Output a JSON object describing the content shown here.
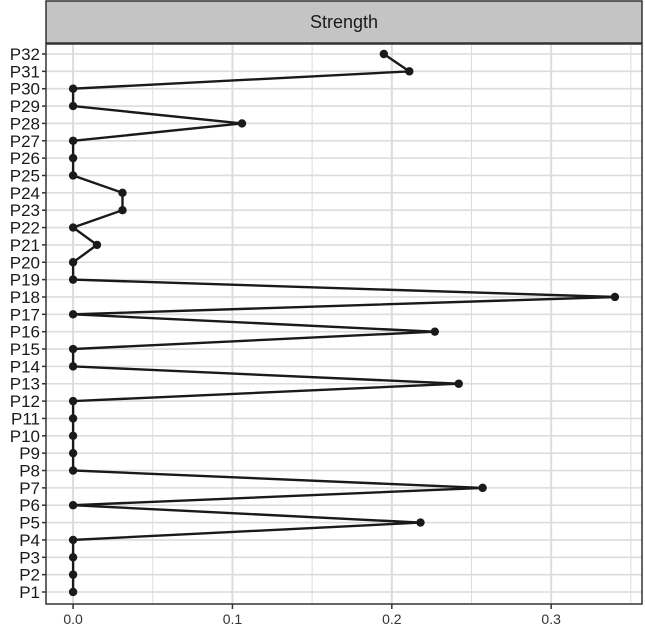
{
  "chart_data": {
    "type": "line",
    "facet_title": "Strength",
    "y_categories": [
      "P1",
      "P2",
      "P3",
      "P4",
      "P5",
      "P6",
      "P7",
      "P8",
      "P9",
      "P10",
      "P11",
      "P12",
      "P13",
      "P14",
      "P15",
      "P16",
      "P17",
      "P18",
      "P19",
      "P20",
      "P21",
      "P22",
      "P23",
      "P24",
      "P25",
      "P26",
      "P27",
      "P28",
      "P29",
      "P30",
      "P31",
      "P32"
    ],
    "values": [
      0,
      0,
      0,
      0,
      0.218,
      0,
      0.257,
      0,
      0,
      0,
      0,
      0,
      0.242,
      0,
      0,
      0.227,
      0,
      0.34,
      0,
      0,
      0.015,
      0,
      0.031,
      0.031,
      0,
      0,
      0,
      0.106,
      0,
      0,
      0.211,
      0.195
    ],
    "x_ticks": [
      "0.0",
      "0.1",
      "0.2",
      "0.3"
    ],
    "x_tick_values": [
      0,
      0.1,
      0.2,
      0.3
    ],
    "xlim": [
      -0.017,
      0.357
    ],
    "xlabel": "",
    "ylabel": "",
    "grid": true,
    "colors": {
      "line": "#1a1a1a",
      "point": "#1a1a1a",
      "strip_fill": "#c4c4c4",
      "grid": "#dcdcdc",
      "panel_border": "#333333"
    }
  }
}
